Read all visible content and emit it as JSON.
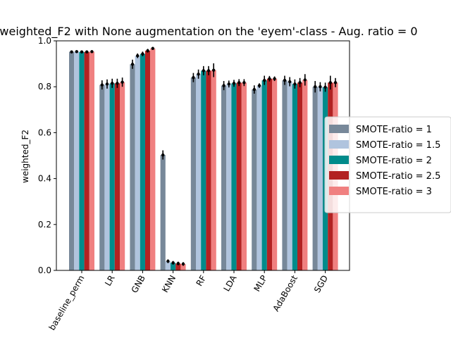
{
  "chart_data": {
    "type": "bar",
    "title": "weighted_F2 with None augmentation on the 'eyem'-class - Aug. ratio = 0",
    "xlabel": "",
    "ylabel": "weighted_F2",
    "ylim": [
      0,
      1.0
    ],
    "yticks": [
      "0.0",
      "0.2",
      "0.4",
      "0.6",
      "0.8",
      "1.0"
    ],
    "ytick_values": [
      0,
      0.2,
      0.4,
      0.6,
      0.8,
      1.0
    ],
    "grid": false,
    "legend_position": "center-right, outside plot",
    "categories": [
      "baseline_perm",
      "LR",
      "GNB",
      "KNN",
      "RF",
      "LDA",
      "MLP",
      "AdaBoost",
      "SGD"
    ],
    "series": [
      {
        "name": "SMOTE-ratio = 1",
        "color": "#778899",
        "values": [
          0.952,
          0.808,
          0.898,
          0.503,
          0.84,
          0.805,
          0.788,
          0.828,
          0.8
        ],
        "errors": [
          0.006,
          0.02,
          0.02,
          0.02,
          0.02,
          0.02,
          0.018,
          0.02,
          0.025
        ]
      },
      {
        "name": "SMOTE-ratio = 1.5",
        "color": "#b0c4de",
        "values": [
          0.953,
          0.812,
          0.935,
          0.04,
          0.855,
          0.812,
          0.805,
          0.822,
          0.8
        ],
        "errors": [
          0.006,
          0.02,
          0.01,
          0.008,
          0.02,
          0.015,
          0.01,
          0.02,
          0.02
        ]
      },
      {
        "name": "SMOTE-ratio = 2",
        "color": "#008b8b",
        "values": [
          0.952,
          0.815,
          0.943,
          0.033,
          0.87,
          0.815,
          0.828,
          0.812,
          0.798
        ],
        "errors": [
          0.006,
          0.02,
          0.01,
          0.008,
          0.02,
          0.015,
          0.02,
          0.02,
          0.02
        ]
      },
      {
        "name": "SMOTE-ratio = 2.5",
        "color": "#b22222",
        "values": [
          0.952,
          0.815,
          0.957,
          0.03,
          0.87,
          0.818,
          0.835,
          0.818,
          0.818
        ],
        "errors": [
          0.006,
          0.02,
          0.008,
          0.008,
          0.02,
          0.015,
          0.012,
          0.02,
          0.03
        ]
      },
      {
        "name": "SMOTE-ratio = 3",
        "color": "#f08080",
        "values": [
          0.953,
          0.82,
          0.967,
          0.028,
          0.872,
          0.818,
          0.835,
          0.83,
          0.818
        ],
        "errors": [
          0.006,
          0.02,
          0.005,
          0.008,
          0.03,
          0.015,
          0.01,
          0.025,
          0.02
        ]
      }
    ]
  }
}
